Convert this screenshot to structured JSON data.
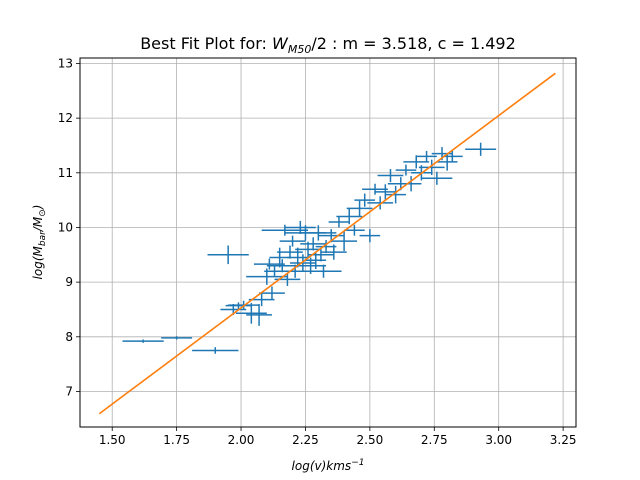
{
  "chart_data": {
    "type": "scatter",
    "title": {
      "prefix": "Best Fit Plot for: ",
      "symbol": "W",
      "symbol_sub": "M50",
      "suffix": "/2 : m = 3.518, c = 1.492"
    },
    "xlabel": {
      "main": "log(v)kms",
      "sup": "−1"
    },
    "ylabel": {
      "pre": "log(M",
      "sub1": "bar",
      "mid": "/M",
      "sub2": "⊙",
      "post": ")"
    },
    "xlim": [
      1.375,
      3.3
    ],
    "ylim": [
      6.35,
      13.1
    ],
    "x_ticks": [
      1.5,
      1.75,
      2.0,
      2.25,
      2.5,
      2.75,
      3.0,
      3.25
    ],
    "x_tick_labels": [
      "1.50",
      "1.75",
      "2.00",
      "2.25",
      "2.50",
      "2.75",
      "3.00",
      "3.25"
    ],
    "y_ticks": [
      7,
      8,
      9,
      10,
      11,
      12,
      13
    ],
    "y_tick_labels": [
      "7",
      "8",
      "9",
      "10",
      "11",
      "12",
      "13"
    ],
    "grid": true,
    "colors": {
      "points": "#1f77b4",
      "fit": "#ff7f0e"
    },
    "fit_line": {
      "slope": 3.518,
      "intercept": 1.492,
      "x_range": [
        1.45,
        3.22
      ]
    },
    "series": [
      {
        "points": [
          [
            1.62,
            7.92,
            0.08,
            0.03
          ],
          [
            1.75,
            7.98,
            0.06,
            0.03
          ],
          [
            1.9,
            7.75,
            0.09,
            0.06
          ],
          [
            1.95,
            9.5,
            0.08,
            0.17
          ],
          [
            1.97,
            8.5,
            0.05,
            0.1
          ],
          [
            1.99,
            8.57,
            0.05,
            0.06
          ],
          [
            2.01,
            8.58,
            0.06,
            0.08
          ],
          [
            2.04,
            8.43,
            0.06,
            0.19
          ],
          [
            2.07,
            8.4,
            0.05,
            0.2
          ],
          [
            2.08,
            8.68,
            0.05,
            0.12
          ],
          [
            2.1,
            9.1,
            0.08,
            0.15
          ],
          [
            2.11,
            9.33,
            0.06,
            0.1
          ],
          [
            2.12,
            8.8,
            0.05,
            0.12
          ],
          [
            2.13,
            9.2,
            0.04,
            0.1
          ],
          [
            2.15,
            9.45,
            0.04,
            0.18
          ],
          [
            2.16,
            9.3,
            0.06,
            0.12
          ],
          [
            2.17,
            9.95,
            0.09,
            0.1
          ],
          [
            2.18,
            9.05,
            0.05,
            0.12
          ],
          [
            2.19,
            9.55,
            0.05,
            0.12
          ],
          [
            2.2,
            9.75,
            0.05,
            0.1
          ],
          [
            2.21,
            9.2,
            0.06,
            0.12
          ],
          [
            2.22,
            9.45,
            0.04,
            0.18
          ],
          [
            2.23,
            10.0,
            0.06,
            0.12
          ],
          [
            2.24,
            9.35,
            0.05,
            0.16
          ],
          [
            2.25,
            9.9,
            0.08,
            0.14
          ],
          [
            2.26,
            9.6,
            0.05,
            0.14
          ],
          [
            2.27,
            9.3,
            0.06,
            0.15
          ],
          [
            2.28,
            9.7,
            0.05,
            0.12
          ],
          [
            2.29,
            9.4,
            0.04,
            0.16
          ],
          [
            2.3,
            9.9,
            0.07,
            0.14
          ],
          [
            2.31,
            9.5,
            0.05,
            0.12
          ],
          [
            2.32,
            9.2,
            0.07,
            0.12
          ],
          [
            2.33,
            9.65,
            0.04,
            0.12
          ],
          [
            2.35,
            9.85,
            0.05,
            0.12
          ],
          [
            2.36,
            9.55,
            0.05,
            0.14
          ],
          [
            2.38,
            10.1,
            0.04,
            0.1
          ],
          [
            2.4,
            9.75,
            0.05,
            0.18
          ],
          [
            2.42,
            10.2,
            0.05,
            0.14
          ],
          [
            2.44,
            9.95,
            0.04,
            0.1
          ],
          [
            2.46,
            10.35,
            0.05,
            0.14
          ],
          [
            2.48,
            10.5,
            0.04,
            0.12
          ],
          [
            2.5,
            9.85,
            0.04,
            0.12
          ],
          [
            2.52,
            10.7,
            0.05,
            0.1
          ],
          [
            2.54,
            10.45,
            0.05,
            0.12
          ],
          [
            2.56,
            10.65,
            0.04,
            0.14
          ],
          [
            2.58,
            10.95,
            0.05,
            0.12
          ],
          [
            2.6,
            10.6,
            0.04,
            0.16
          ],
          [
            2.62,
            10.8,
            0.05,
            0.12
          ],
          [
            2.64,
            11.05,
            0.04,
            0.1
          ],
          [
            2.66,
            10.8,
            0.04,
            0.14
          ],
          [
            2.68,
            11.2,
            0.05,
            0.12
          ],
          [
            2.7,
            11.0,
            0.04,
            0.14
          ],
          [
            2.72,
            11.3,
            0.04,
            0.1
          ],
          [
            2.74,
            11.1,
            0.05,
            0.14
          ],
          [
            2.76,
            10.9,
            0.06,
            0.12
          ],
          [
            2.78,
            11.35,
            0.04,
            0.12
          ],
          [
            2.8,
            11.2,
            0.04,
            0.16
          ],
          [
            2.82,
            11.3,
            0.04,
            0.1
          ],
          [
            2.93,
            11.43,
            0.06,
            0.12
          ]
        ]
      }
    ]
  }
}
